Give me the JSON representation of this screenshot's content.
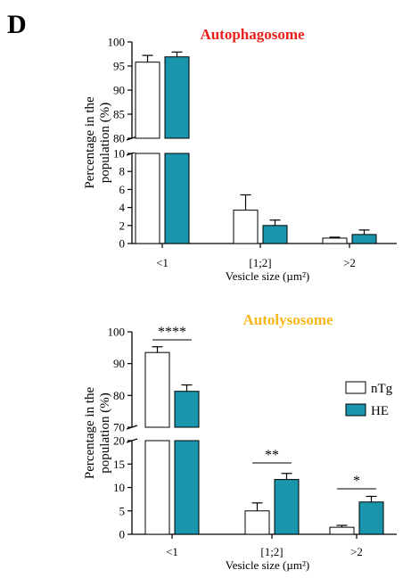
{
  "panel_label": "D",
  "legend": {
    "entries": [
      {
        "label": "nTg",
        "color": "#ffffff"
      },
      {
        "label": "HE",
        "color": "#1a95ab"
      }
    ]
  },
  "chart_data": [
    {
      "type": "bar",
      "title": "Autophagosome",
      "title_color": "#e8211c",
      "xlabel": "Vesicle size (µm²)",
      "ylabel": "Percentage in the population (%)",
      "categories": [
        "<1",
        "[1;2]",
        ">2"
      ],
      "y_break": [
        10,
        80
      ],
      "ylim": [
        0,
        100
      ],
      "yticks": [
        0,
        2,
        4,
        6,
        8,
        10,
        80,
        85,
        90,
        95,
        100
      ],
      "series": [
        {
          "name": "nTg",
          "color": "#ffffff",
          "values": [
            95.8,
            3.7,
            0.6
          ],
          "errors": [
            1.4,
            1.7,
            0.1
          ]
        },
        {
          "name": "HE",
          "color": "#1a95ab",
          "values": [
            96.9,
            2.0,
            1.0
          ],
          "errors": [
            1.0,
            0.6,
            0.5
          ]
        }
      ],
      "significance": []
    },
    {
      "type": "bar",
      "title": "Autolysosome",
      "title_color": "#f9b61b",
      "xlabel": "Vesicle size (µm²)",
      "ylabel": "Percentage in the population (%)",
      "categories": [
        "<1",
        "[1;2]",
        ">2"
      ],
      "y_break": [
        20,
        70
      ],
      "ylim": [
        0,
        100
      ],
      "yticks": [
        0,
        5,
        10,
        15,
        20,
        70,
        80,
        90,
        100
      ],
      "series": [
        {
          "name": "nTg",
          "color": "#ffffff",
          "values": [
            93.5,
            5.0,
            1.5
          ],
          "errors": [
            1.8,
            1.7,
            0.4
          ]
        },
        {
          "name": "HE",
          "color": "#1a95ab",
          "values": [
            81.3,
            11.7,
            6.9
          ],
          "errors": [
            2.0,
            1.3,
            1.2
          ]
        }
      ],
      "significance": [
        {
          "category": 0,
          "label": "****"
        },
        {
          "category": 1,
          "label": "**"
        },
        {
          "category": 2,
          "label": "*"
        }
      ]
    }
  ]
}
